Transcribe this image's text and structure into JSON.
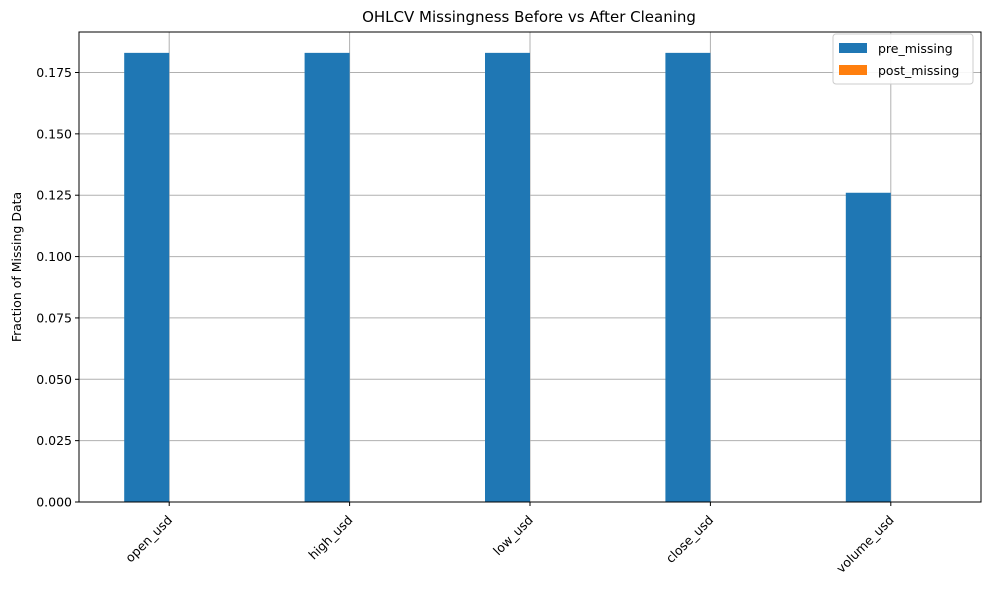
{
  "chart_data": {
    "type": "bar",
    "title": "OHLCV Missingness Before vs After Cleaning",
    "xlabel": "",
    "ylabel": "Fraction of Missing Data",
    "categories": [
      "open_usd",
      "high_usd",
      "low_usd",
      "close_usd",
      "volume_usd"
    ],
    "series": [
      {
        "name": "pre_missing",
        "values": [
          0.183,
          0.183,
          0.183,
          0.183,
          0.126
        ],
        "color": "#1f77b4"
      },
      {
        "name": "post_missing",
        "values": [
          0,
          0,
          0,
          0,
          0
        ],
        "color": "#ff7f0e"
      }
    ],
    "ylim": [
      0,
      0.1915
    ],
    "yticks": [
      "0.000",
      "0.025",
      "0.050",
      "0.075",
      "0.100",
      "0.125",
      "0.150",
      "0.175"
    ],
    "grid": true,
    "legend_position": "top-right"
  }
}
